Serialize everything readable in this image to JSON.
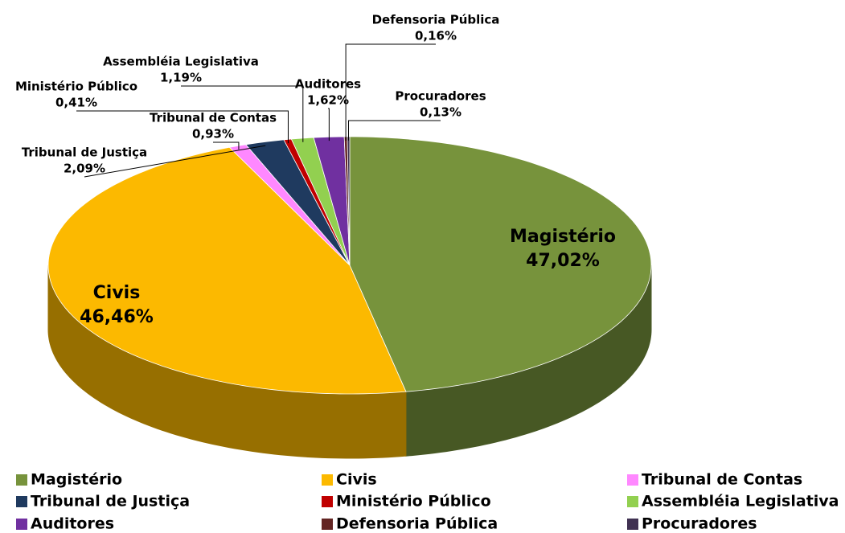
{
  "chart_data": {
    "type": "pie",
    "categories": [
      "Magistério",
      "Civis",
      "Tribunal de Contas",
      "Tribunal de Justiça",
      "Ministério Público",
      "Assembléia Legislativa",
      "Auditores",
      "Defensoria Pública",
      "Procuradores"
    ],
    "values": [
      47.02,
      46.46,
      0.93,
      2.09,
      0.41,
      1.19,
      1.62,
      0.16,
      0.13
    ],
    "value_labels": [
      "47,02%",
      "46,46%",
      "0,93%",
      "2,09%",
      "0,41%",
      "1,19%",
      "1,62%",
      "0,16%",
      "0,13%"
    ],
    "colors": [
      "#77933c",
      "#fcb900",
      "#ff88ff",
      "#1f3a5f",
      "#c00000",
      "#92d050",
      "#7030a0",
      "#632523",
      "#403152"
    ],
    "legend": "bottom"
  }
}
